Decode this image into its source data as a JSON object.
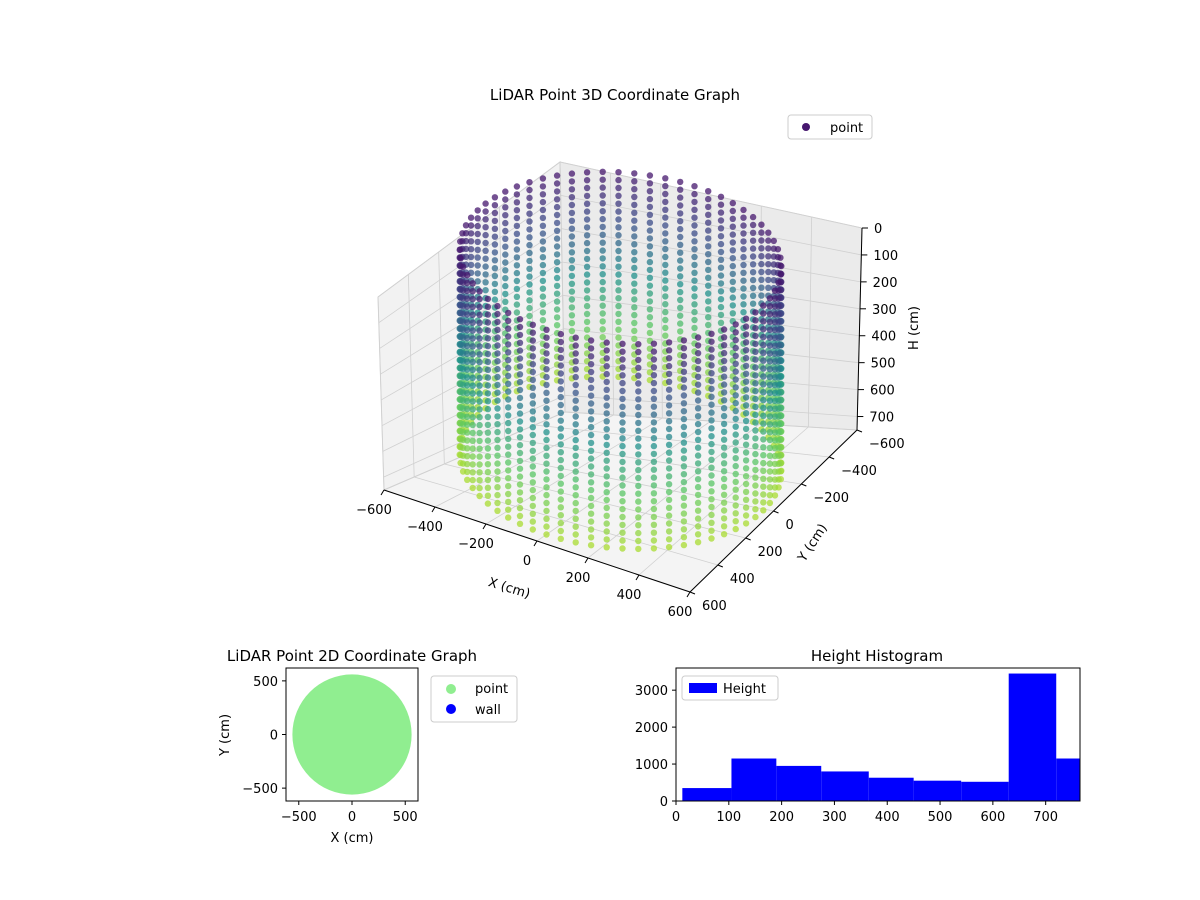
{
  "chart_data": [
    {
      "type": "scatter",
      "projection": "3d",
      "title": "LiDAR Point 3D Coordinate Graph",
      "xlabel": "X (cm)",
      "ylabel": "Y (cm)",
      "zlabel": "H (cm)",
      "xlim": [
        -600,
        600
      ],
      "ylim": [
        -600,
        600
      ],
      "zlim": [
        0,
        750
      ],
      "z_inverted": true,
      "x_ticks": [
        "−600",
        "−400",
        "−200",
        "0",
        "200",
        "400",
        "600"
      ],
      "y_ticks": [
        "−600",
        "−400",
        "−200",
        "0",
        "200",
        "400",
        "600"
      ],
      "z_ticks": [
        "0",
        "100",
        "200",
        "300",
        "400",
        "500",
        "600",
        "700"
      ],
      "grid": true,
      "colormap": "viridis",
      "legend": {
        "position": "top-right",
        "entries": [
          {
            "label": "point",
            "color": "#46176e"
          }
        ]
      },
      "series": [
        {
          "name": "point",
          "shape": "cylindrical-wall",
          "radius": 560,
          "h_range": [
            0,
            760
          ]
        }
      ]
    },
    {
      "type": "scatter",
      "title": "LiDAR Point 2D Coordinate Graph",
      "xlabel": "X (cm)",
      "ylabel": "Y (cm)",
      "xlim": [
        -620,
        620
      ],
      "ylim": [
        -620,
        620
      ],
      "x_ticks": [
        "−500",
        "0",
        "500"
      ],
      "y_ticks": [
        "−500",
        "0",
        "500"
      ],
      "legend": {
        "position": "outside-right",
        "entries": [
          {
            "label": "point",
            "color": "#90ee90"
          },
          {
            "label": "wall",
            "color": "#0000ff"
          }
        ]
      },
      "series": [
        {
          "name": "point",
          "color": "#90ee90",
          "shape": "filled-disk",
          "radius": 560
        }
      ]
    },
    {
      "type": "bar",
      "title": "Height Histogram",
      "xlabel": "",
      "ylabel": "",
      "xlim": [
        0,
        765
      ],
      "ylim": [
        0,
        3600
      ],
      "x_ticks": [
        "0",
        "100",
        "200",
        "300",
        "400",
        "500",
        "600",
        "700"
      ],
      "y_ticks": [
        "0",
        "1000",
        "2000",
        "3000"
      ],
      "bar_color": "#0000ff",
      "legend": {
        "position": "top-left",
        "entries": [
          {
            "label": "Height",
            "color": "#0000ff"
          }
        ]
      },
      "bins": [
        {
          "x0": 12,
          "x1": 105,
          "count": 350
        },
        {
          "x0": 105,
          "x1": 190,
          "count": 1150
        },
        {
          "x0": 190,
          "x1": 275,
          "count": 950
        },
        {
          "x0": 275,
          "x1": 365,
          "count": 800
        },
        {
          "x0": 365,
          "x1": 450,
          "count": 630
        },
        {
          "x0": 450,
          "x1": 540,
          "count": 550
        },
        {
          "x0": 540,
          "x1": 630,
          "count": 520
        },
        {
          "x0": 630,
          "x1": 720,
          "count": 3450
        },
        {
          "x0": 720,
          "x1": 765,
          "count": 1150
        }
      ]
    }
  ]
}
